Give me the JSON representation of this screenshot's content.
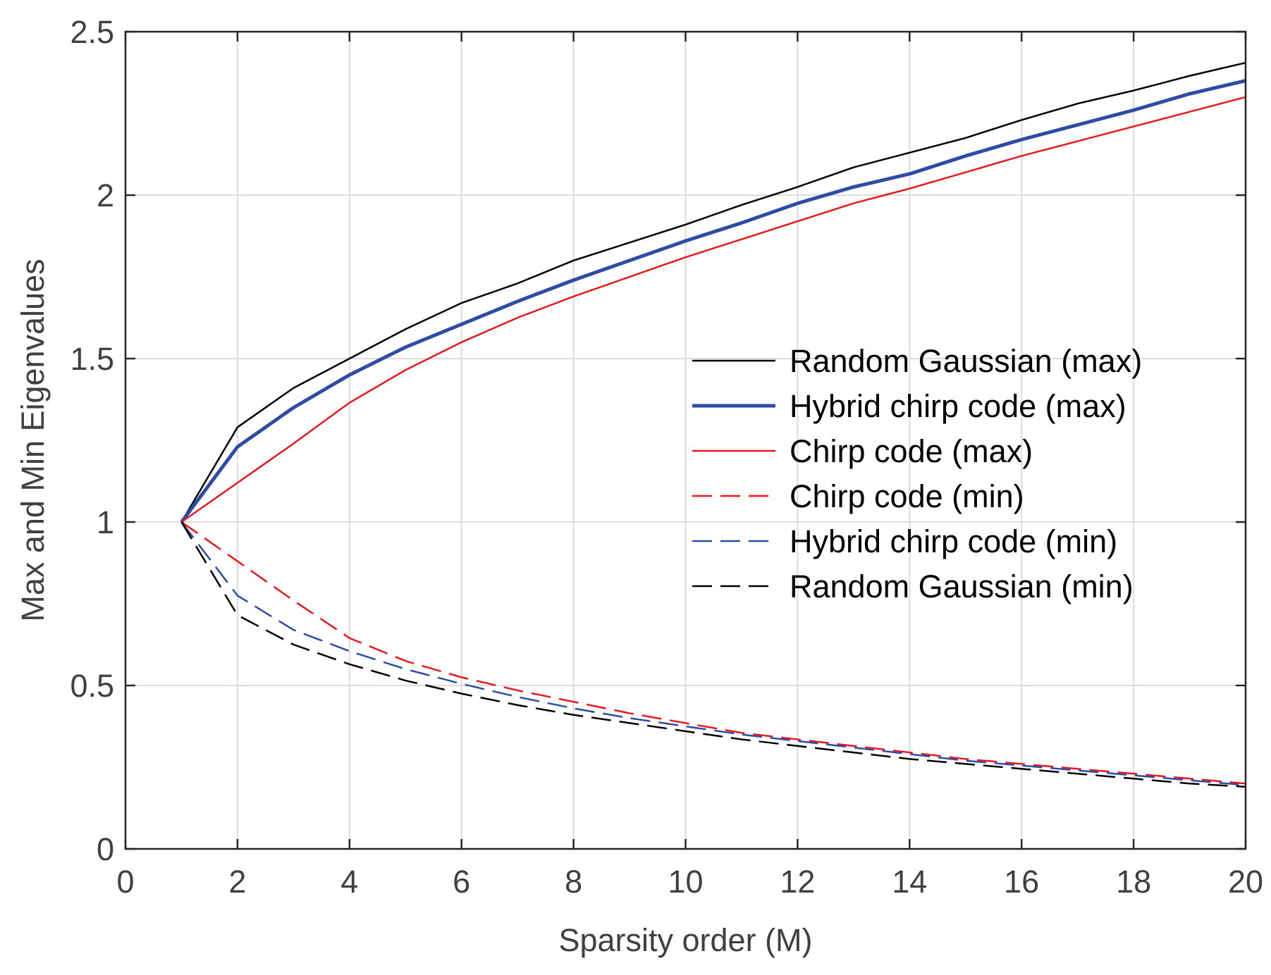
{
  "chart_data": {
    "type": "line",
    "title": "",
    "xlabel": "Sparsity order (M)",
    "ylabel": "Max and Min Eigenvalues",
    "xlim": [
      0,
      20
    ],
    "ylim": [
      0,
      2.5
    ],
    "xticks": [
      0,
      2,
      4,
      6,
      8,
      10,
      12,
      14,
      16,
      18,
      20
    ],
    "yticks": [
      0,
      0.5,
      1,
      1.5,
      2,
      2.5
    ],
    "xtick_labels": [
      "0",
      "2",
      "4",
      "6",
      "8",
      "10",
      "12",
      "14",
      "16",
      "18",
      "20"
    ],
    "ytick_labels": [
      "0",
      "0.5",
      "1",
      "1.5",
      "2",
      "2.5"
    ],
    "grid": true,
    "legend_position": "center-right",
    "x": [
      1,
      2,
      3,
      4,
      5,
      6,
      7,
      8,
      9,
      10,
      11,
      12,
      13,
      14,
      15,
      16,
      17,
      18,
      19,
      20
    ],
    "series": [
      {
        "name": "Random Gaussian (max)",
        "color": "#000000",
        "style": "solid",
        "width": 2.5,
        "values": [
          1.0,
          1.29,
          1.41,
          1.5,
          1.59,
          1.67,
          1.73,
          1.8,
          1.855,
          1.91,
          1.97,
          2.025,
          2.085,
          2.13,
          2.175,
          2.23,
          2.28,
          2.32,
          2.365,
          2.405
        ]
      },
      {
        "name": "Hybrid chirp code (max)",
        "color": "#2E4BA6",
        "style": "solid",
        "width": 5,
        "values": [
          1.0,
          1.23,
          1.35,
          1.45,
          1.535,
          1.605,
          1.675,
          1.74,
          1.8,
          1.86,
          1.915,
          1.975,
          2.025,
          2.065,
          2.12,
          2.17,
          2.215,
          2.26,
          2.31,
          2.35
        ]
      },
      {
        "name": "Chirp code (max)",
        "color": "#E8191E",
        "style": "solid",
        "width": 2.5,
        "values": [
          1.0,
          1.12,
          1.24,
          1.365,
          1.465,
          1.55,
          1.625,
          1.69,
          1.75,
          1.81,
          1.865,
          1.92,
          1.975,
          2.02,
          2.07,
          2.12,
          2.165,
          2.21,
          2.255,
          2.3
        ]
      },
      {
        "name": "Chirp code (min)",
        "color": "#E8191E",
        "style": "dashed",
        "width": 2.5,
        "values": [
          1.0,
          0.88,
          0.76,
          0.645,
          0.575,
          0.525,
          0.485,
          0.45,
          0.415,
          0.385,
          0.355,
          0.335,
          0.315,
          0.295,
          0.275,
          0.26,
          0.245,
          0.23,
          0.215,
          0.2
        ]
      },
      {
        "name": "Hybrid chirp code (min)",
        "color": "#2E4BA6",
        "style": "dashed",
        "width": 2.5,
        "values": [
          1.0,
          0.775,
          0.67,
          0.605,
          0.55,
          0.505,
          0.465,
          0.43,
          0.4,
          0.375,
          0.35,
          0.33,
          0.31,
          0.29,
          0.27,
          0.255,
          0.24,
          0.225,
          0.21,
          0.195
        ]
      },
      {
        "name": "Random Gaussian (min)",
        "color": "#000000",
        "style": "dashed",
        "width": 2.5,
        "values": [
          1.0,
          0.715,
          0.625,
          0.565,
          0.515,
          0.475,
          0.44,
          0.41,
          0.385,
          0.36,
          0.335,
          0.315,
          0.295,
          0.275,
          0.26,
          0.245,
          0.23,
          0.215,
          0.2,
          0.19
        ]
      }
    ]
  }
}
